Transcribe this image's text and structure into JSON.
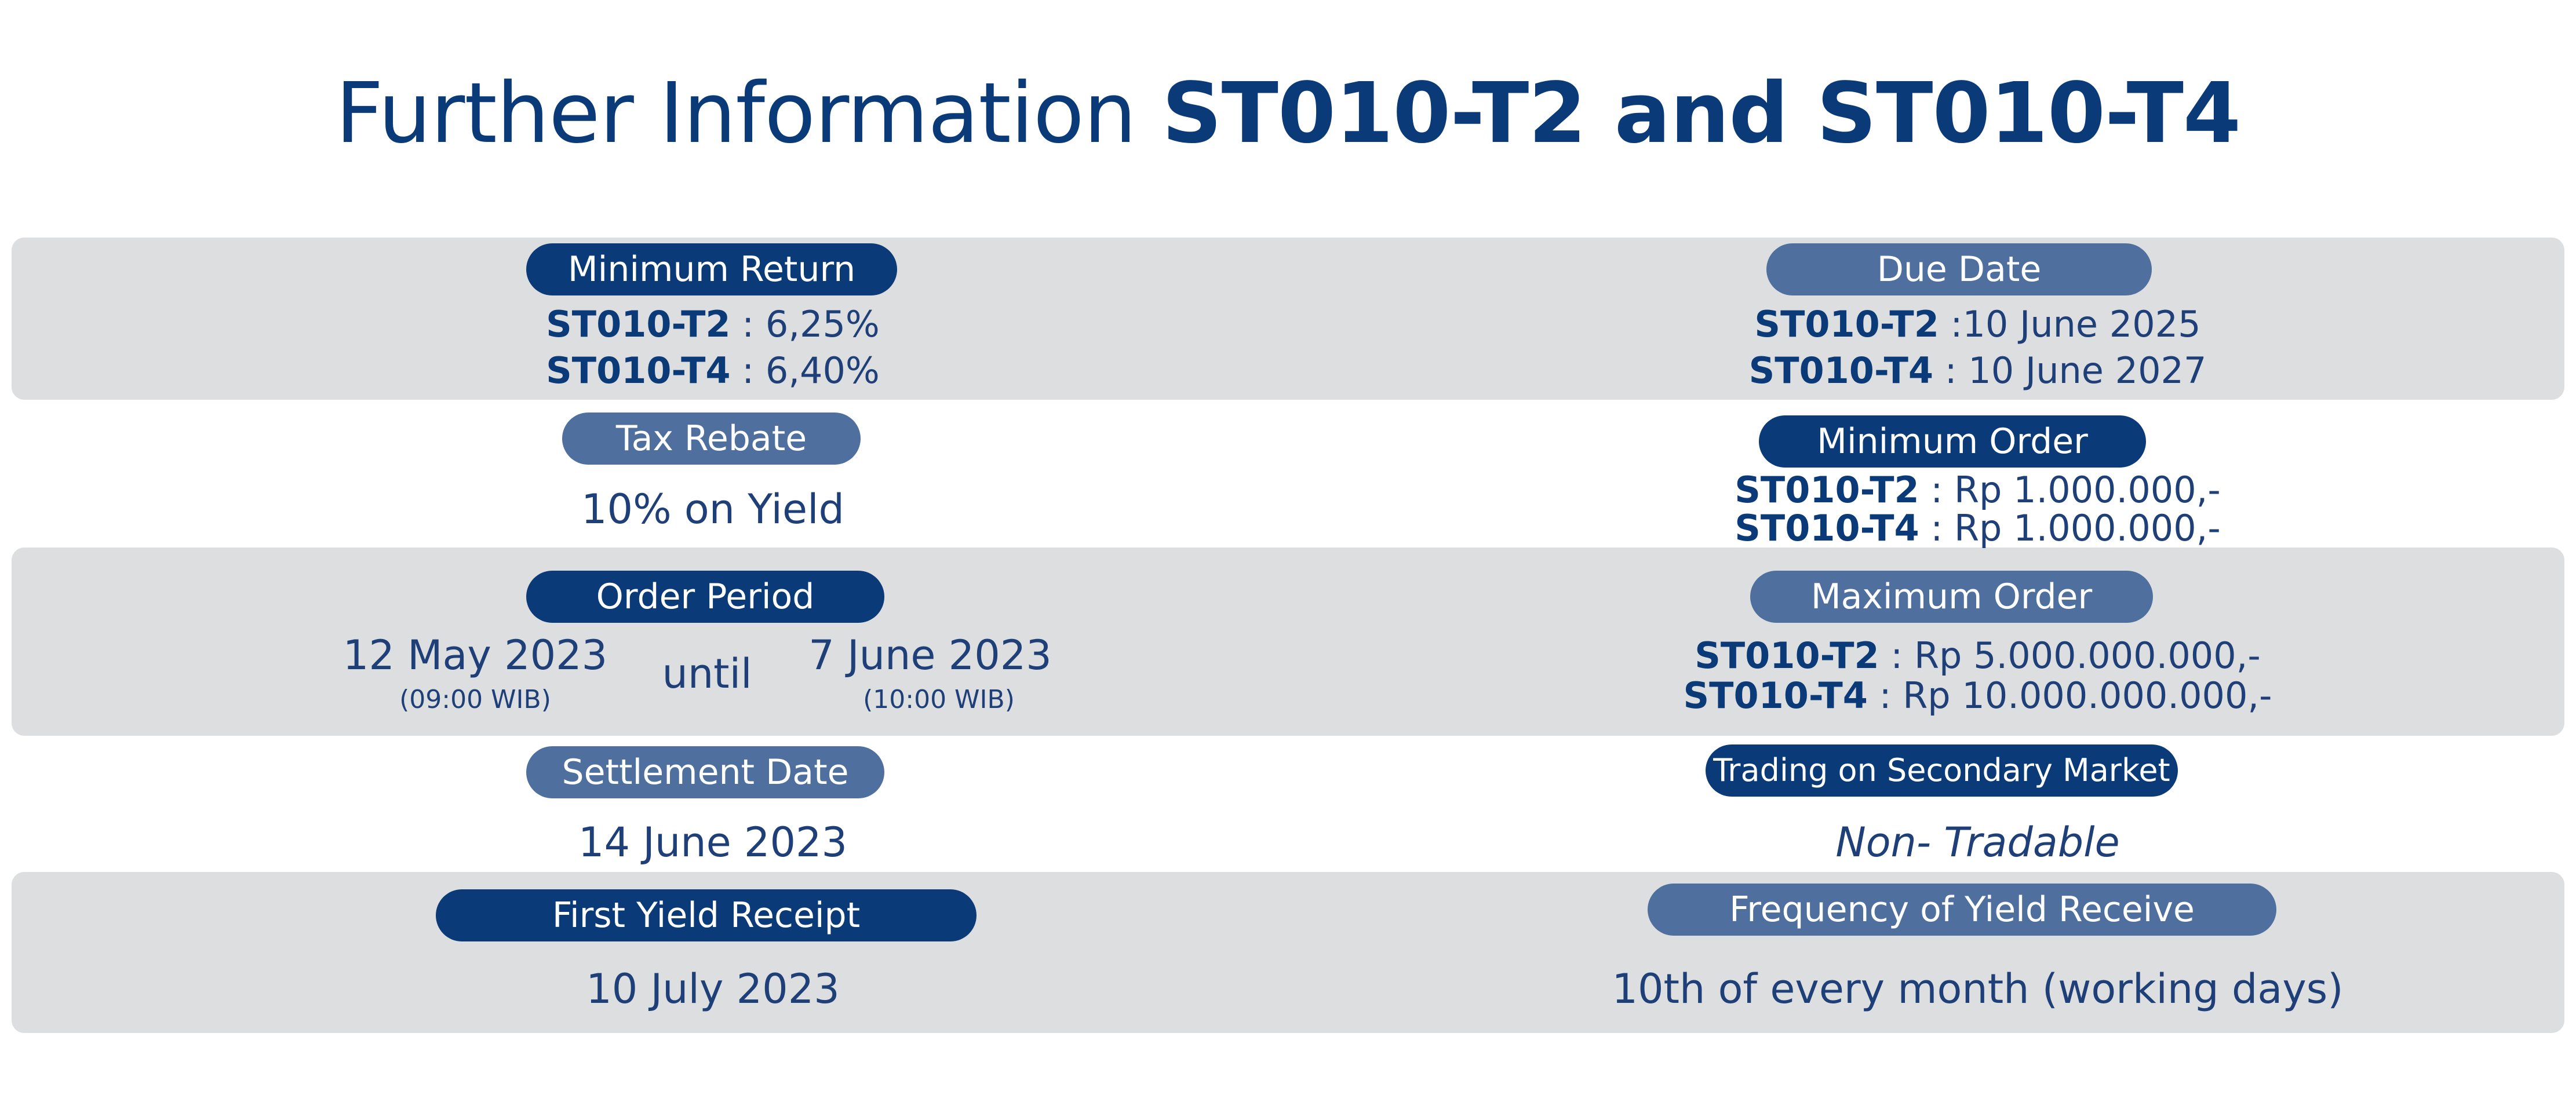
{
  "title": {
    "regular": "Further Information",
    "bold": "ST010-T2 and ST010-T4"
  },
  "minimum_return": {
    "label": "Minimum Return",
    "rows": [
      {
        "series": "ST010-T2",
        "value": " : 6,25%"
      },
      {
        "series": "ST010-T4",
        "value": " : 6,40%"
      }
    ]
  },
  "due_date": {
    "label": "Due Date",
    "rows": [
      {
        "series": "ST010-T2",
        "value": " :10 June 2025"
      },
      {
        "series": "ST010-T4",
        "value": " : 10 June 2027"
      }
    ]
  },
  "tax_rebate": {
    "label": "Tax Rebate",
    "value": "10% on Yield"
  },
  "minimum_order": {
    "label": "Minimum Order",
    "rows": [
      {
        "series": "ST010-T2",
        "value": " : Rp 1.000.000,-"
      },
      {
        "series": "ST010-T4",
        "value": " : Rp 1.000.000,-"
      }
    ]
  },
  "order_period": {
    "label": "Order Period",
    "start_date": "12 May 2023",
    "start_time": "(09:00 WIB)",
    "until": "until",
    "end_date": "7 June 2023",
    "end_time": "(10:00 WIB)"
  },
  "maximum_order": {
    "label": "Maximum Order",
    "rows": [
      {
        "series": "ST010-T2",
        "value": " : Rp 5.000.000.000,-"
      },
      {
        "series": "ST010-T4",
        "value": " : Rp 10.000.000.000,-"
      }
    ]
  },
  "settlement_date": {
    "label": "Settlement Date",
    "value": "14 June 2023"
  },
  "secondary_market": {
    "label": "Trading on Secondary Market",
    "value": "Non- Tradable"
  },
  "first_yield": {
    "label": "First Yield Receipt",
    "value": "10 July 2023"
  },
  "yield_frequency": {
    "label": "Frequency of Yield Receive",
    "value": "10th of every month (working days)"
  },
  "colors": {
    "dark_pill": "#0b3a78",
    "light_pill": "#4f6f9f",
    "band": "#dcdedf",
    "text": "#1e3f78"
  }
}
